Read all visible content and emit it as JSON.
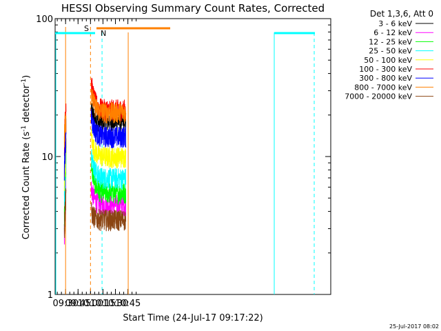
{
  "chart_data": {
    "type": "line",
    "title": "HESSI Observing Summary Count Rates, Corrected",
    "xlabel": "Start Time (24-Jul-17 09:17:22)",
    "ylabel_main": "Corrected Count Rate (s",
    "ylabel_sup1": "-1",
    "ylabel_mid": " detector",
    "ylabel_sup2": "-1",
    "ylabel_end": ")",
    "y_scale": "log",
    "ylim": [
      1,
      100
    ],
    "xlim_minutes": [
      557.4,
      889.3
    ],
    "x_axis_start_min": 557.4,
    "x_axis_end_min": 889.3,
    "yticks": [
      {
        "value": 1,
        "label": "1"
      },
      {
        "value": 10,
        "label": "10"
      },
      {
        "value": 100,
        "label": "100"
      }
    ],
    "xticks": [
      {
        "minute": 570,
        "label": "09:30"
      },
      {
        "minute": 585,
        "label": "09:45"
      },
      {
        "minute": 600,
        "label": "10:00"
      },
      {
        "minute": 615,
        "label": "10:15"
      },
      {
        "minute": 630,
        "label": "10:30"
      },
      {
        "minute": 645,
        "label": "10:45"
      }
    ],
    "legend_header": "Det 1,3,6, Att 0",
    "legend_position": "right",
    "series": [
      {
        "name": "3 - 6 keV",
        "color": "#000000",
        "segA": [
          3,
          12
        ],
        "segB": [
          22,
          18
        ]
      },
      {
        "name": "6 - 12 keV",
        "color": "#ff00ff",
        "segA": [
          2.5,
          8
        ],
        "segB": [
          6,
          4.5
        ]
      },
      {
        "name": "12 - 25 keV",
        "color": "#00ff00",
        "segA": [
          4,
          10
        ],
        "segB": [
          9,
          5.5
        ]
      },
      {
        "name": "25 - 50 keV",
        "color": "#00ffff",
        "segA": [
          5,
          11
        ],
        "segB": [
          11,
          7
        ]
      },
      {
        "name": "50 - 100 keV",
        "color": "#ffff00",
        "segA": [
          6,
          13
        ],
        "segB": [
          14,
          10
        ]
      },
      {
        "name": "100 - 300 keV",
        "color": "#ff0000",
        "segA": [
          13,
          25
        ],
        "segB": [
          35,
          22
        ]
      },
      {
        "name": "300 - 800 keV",
        "color": "#0000ff",
        "segA": [
          8,
          16
        ],
        "segB": [
          20,
          14
        ]
      },
      {
        "name": "800 - 7000 keV",
        "color": "#ff8000",
        "segA": [
          15,
          20
        ],
        "segB": [
          30,
          21
        ]
      },
      {
        "name": "7000 - 20000 keV",
        "color": "#8b4513",
        "segA": [
          3,
          6
        ],
        "segB": [
          4,
          3.5
        ]
      }
    ],
    "segA_minutes": [
      568.5,
      570.5
    ],
    "segB_minutes": [
      600.8,
      642.5
    ],
    "annotations": {
      "saa_label": "S",
      "night_label": "N",
      "saa_color": "#ff8000",
      "night_color": "#00ffff",
      "saa_lines_minutes": [
        570.0,
        600.0,
        645.4
      ],
      "night_lines_minutes": [
        566.6,
        642.3,
        858.2
      ]
    },
    "timestamp": "25-Jul-2017 08:02"
  }
}
